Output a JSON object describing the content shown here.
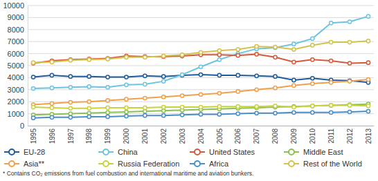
{
  "chart_data": {
    "type": "line",
    "categories": [
      "1995",
      "1996",
      "1997",
      "1998",
      "1999",
      "2000",
      "2001",
      "2002",
      "2003",
      "2004",
      "2005",
      "2006",
      "2007",
      "2008",
      "2009",
      "2010",
      "2011",
      "2012",
      "2013"
    ],
    "series": [
      {
        "name": "EU-28",
        "color": "#1f5a99",
        "values": [
          4050,
          4200,
          4100,
          4100,
          4050,
          4050,
          4150,
          4100,
          4200,
          4250,
          4200,
          4200,
          4150,
          4100,
          3800,
          3950,
          3800,
          3750,
          3600
        ]
      },
      {
        "name": "China",
        "color": "#6cc4e0",
        "values": [
          3100,
          3150,
          3200,
          3250,
          3200,
          3400,
          3450,
          3700,
          4250,
          4900,
          5500,
          6000,
          6400,
          6500,
          6800,
          7250,
          8550,
          8650,
          9100
        ]
      },
      {
        "name": "United States",
        "color": "#d65a3a",
        "values": [
          5200,
          5400,
          5500,
          5550,
          5600,
          5800,
          5750,
          5750,
          5800,
          5900,
          5900,
          5850,
          5950,
          5700,
          5300,
          5500,
          5400,
          5200,
          5250
        ]
      },
      {
        "name": "Middle East",
        "color": "#8cc152",
        "values": [
          900,
          950,
          1000,
          1050,
          1100,
          1150,
          1200,
          1250,
          1300,
          1350,
          1400,
          1450,
          1500,
          1550,
          1600,
          1650,
          1700,
          1750,
          1800
        ]
      },
      {
        "name": "Asia**",
        "color": "#f0a04b",
        "values": [
          1750,
          1850,
          1950,
          2000,
          2100,
          2200,
          2300,
          2400,
          2500,
          2600,
          2700,
          2850,
          3000,
          3150,
          3350,
          3500,
          3600,
          3700,
          3850
        ]
      },
      {
        "name": "Russia Federation",
        "color": "#c8d33a",
        "values": [
          1550,
          1500,
          1450,
          1450,
          1500,
          1500,
          1500,
          1550,
          1550,
          1550,
          1600,
          1600,
          1600,
          1650,
          1550,
          1650,
          1700,
          1700,
          1650
        ]
      },
      {
        "name": "Africa",
        "color": "#4a8ec8",
        "values": [
          650,
          700,
          700,
          750,
          750,
          800,
          850,
          850,
          900,
          950,
          950,
          1000,
          1050,
          1050,
          1100,
          1100,
          1100,
          1150,
          1200
        ]
      },
      {
        "name": "Rest of the World",
        "color": "#d4c24a",
        "values": [
          5250,
          5300,
          5450,
          5500,
          5550,
          5700,
          5700,
          5800,
          5900,
          6100,
          6250,
          6350,
          6600,
          6550,
          6350,
          6700,
          6950,
          6950,
          7050
        ]
      }
    ],
    "ylim": [
      0,
      10000
    ],
    "yticks": [
      0,
      1000,
      2000,
      3000,
      4000,
      5000,
      6000,
      7000,
      8000,
      9000,
      10000
    ],
    "grid": true,
    "legend": "bottom",
    "marker": "circle",
    "notes": [
      "* Contains CO₂ emissions from fuel combustion and international maritime and aviation bunkers."
    ]
  }
}
